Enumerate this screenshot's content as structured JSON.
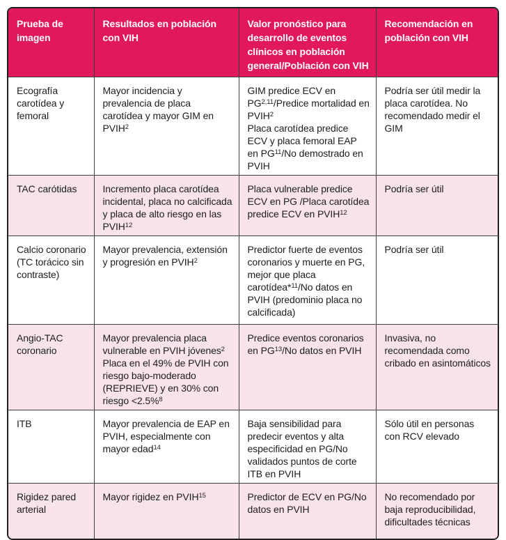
{
  "colors": {
    "header_bg": "#e2185c",
    "header_text": "#ffffff",
    "row_bg": "#ffffff",
    "row_alt_bg": "#f8e3ea",
    "border_outer": "#1f1f1f",
    "border_inner": "#3d3d3d",
    "body_text": "#1d1d1d"
  },
  "table": {
    "headers": [
      "Prueba de imagen",
      "Resultados en población con VIH",
      "Valor pronóstico para desarrollo de eventos clínicos en población general/Población con VIH",
      "Recomendación en población con VIH"
    ],
    "rows": [
      {
        "shaded": false,
        "cells": [
          [
            {
              "t": "Ecografía carotídea y femoral"
            }
          ],
          [
            {
              "t": "Mayor incidencia y prevalencia de placa carotídea y mayor GIM en PVIH"
            },
            {
              "s": "2"
            }
          ],
          [
            {
              "t": "GIM predice ECV en PG"
            },
            {
              "s": "2,11"
            },
            {
              "t": "/Predice mortalidad en PVIH"
            },
            {
              "s": "2"
            },
            {
              "br": true
            },
            {
              "t": "Placa carotídea predice ECV y placa femoral EAP en PG"
            },
            {
              "s": "11"
            },
            {
              "t": "/No demostrado en PVIH"
            }
          ],
          [
            {
              "t": "Podría ser útil medir la placa carotídea. No recomendado medir el GIM"
            }
          ]
        ]
      },
      {
        "shaded": true,
        "cells": [
          [
            {
              "t": "TAC carótidas"
            }
          ],
          [
            {
              "t": "Incremento placa carotídea incidental, placa no calcificada y placa de alto riesgo en las PVIH"
            },
            {
              "s": "12"
            }
          ],
          [
            {
              "t": "Placa vulnerable predice ECV en PG /Placa carotídea predice ECV en PVIH"
            },
            {
              "s": "12"
            }
          ],
          [
            {
              "t": "Podría ser útil"
            }
          ]
        ]
      },
      {
        "shaded": false,
        "cells": [
          [
            {
              "t": "Calcio coronario (TC torácico sin contraste)"
            }
          ],
          [
            {
              "t": "Mayor prevalencia, extensión y progresión en PVIH"
            },
            {
              "s": "2"
            }
          ],
          [
            {
              "t": "Predictor fuerte de eventos coronarios y muerte en PG, mejor que placa carotídea*"
            },
            {
              "s": "11"
            },
            {
              "t": "/No datos en PVIH (predominio placa no calcificada)"
            }
          ],
          [
            {
              "t": "Podría ser útil"
            }
          ]
        ]
      },
      {
        "shaded": true,
        "cells": [
          [
            {
              "t": "Angio-TAC coronario"
            }
          ],
          [
            {
              "t": "Mayor prevalencia placa vulnerable en PVIH jóvenes"
            },
            {
              "s": "2"
            },
            {
              "br": true
            },
            {
              "t": "Placa en el 49% de PVIH con riesgo bajo-moderado (REPRIEVE) y en 30% con riesgo <2.5%"
            },
            {
              "s": "8"
            }
          ],
          [
            {
              "t": "Predice eventos coronarios en PG"
            },
            {
              "s": "13"
            },
            {
              "t": "/No datos en PVIH"
            }
          ],
          [
            {
              "t": "Invasiva, no recomendada como cribado en asintomáticos"
            }
          ]
        ]
      },
      {
        "shaded": false,
        "cells": [
          [
            {
              "t": "ITB"
            }
          ],
          [
            {
              "t": "Mayor prevalencia de EAP en PVIH, especialmente con mayor edad"
            },
            {
              "s": "14"
            }
          ],
          [
            {
              "t": "Baja sensibilidad para predecir eventos y alta especificidad en PG/No validados puntos de corte ITB en PVIH"
            }
          ],
          [
            {
              "t": "Sólo útil en personas con RCV elevado"
            }
          ]
        ]
      },
      {
        "shaded": true,
        "cells": [
          [
            {
              "t": "Rigidez pared arterial"
            }
          ],
          [
            {
              "t": "Mayor rigidez en PVIH"
            },
            {
              "s": "15"
            }
          ],
          [
            {
              "t": "Predictor de ECV en PG/No datos en PVIH"
            }
          ],
          [
            {
              "t": "No recomendado por baja reproducibilidad, dificultades técnicas"
            }
          ]
        ]
      }
    ]
  }
}
